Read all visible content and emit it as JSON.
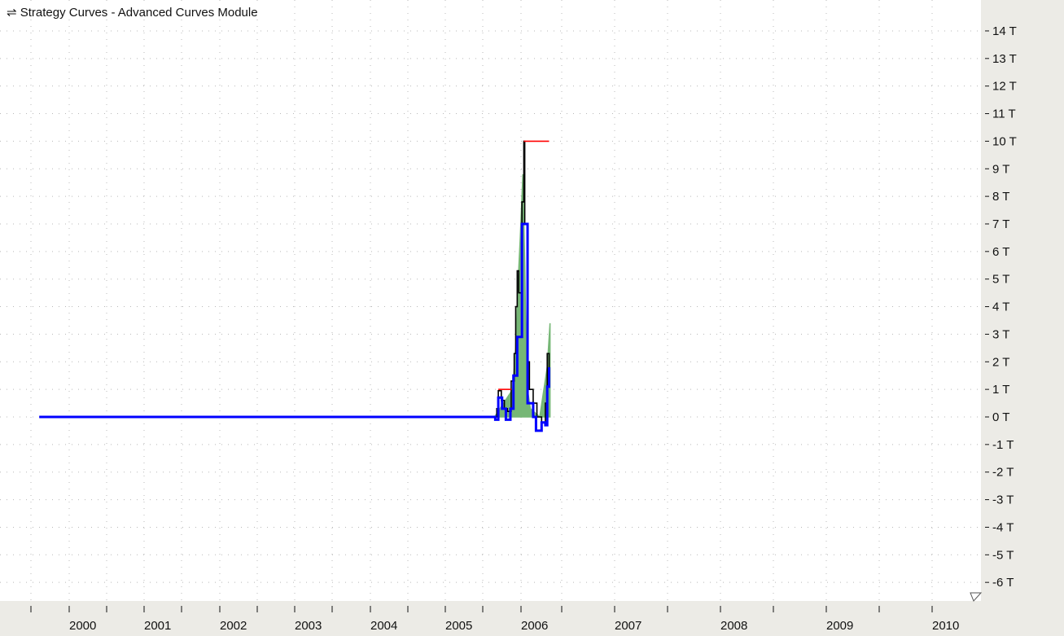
{
  "window": {
    "title": "Strategy Curves - Advanced Curves Module",
    "title_icon": "swap-arrows-icon"
  },
  "chart_data": {
    "type": "line",
    "title": "Strategy Curves - Advanced Curves Module",
    "xlabel": "",
    "ylabel": "",
    "x_tick_labels": [
      "2000",
      "2001",
      "2002",
      "2003",
      "2004",
      "2005",
      "2006",
      "2007",
      "2008",
      "2009",
      "2010"
    ],
    "y_tick_labels": [
      "14 T",
      "13 T",
      "12 T",
      "11 T",
      "10 T",
      "9 T",
      "8 T",
      "7 T",
      "6 T",
      "5 T",
      "4 T",
      "3 T",
      "2 T",
      "1 T",
      "0 T",
      "-1 T",
      "-2 T",
      "-3 T",
      "-4 T",
      "-5 T",
      "-6 T"
    ],
    "ylim": [
      -6.5,
      15
    ],
    "y_unit": "T",
    "grid": true,
    "legend": "none",
    "series": [
      {
        "color": "#6fb46f",
        "style": "area",
        "points": [
          [
            2005.65,
            0
          ],
          [
            2005.89,
            1.0
          ],
          [
            2005.93,
            2.5
          ],
          [
            2005.96,
            4.8
          ],
          [
            2005.99,
            6.5
          ],
          [
            2006.02,
            8.8
          ],
          [
            2006.04,
            5.5
          ],
          [
            2006.06,
            1.2
          ],
          [
            2006.1,
            0.3
          ],
          [
            2006.2,
            0
          ],
          [
            2006.28,
            1.8
          ],
          [
            2006.31,
            3.4
          ],
          [
            2006.31,
            0
          ]
        ]
      },
      {
        "color": "#000000",
        "style": "step",
        "points": [
          [
            2005.65,
            0
          ],
          [
            2005.68,
            0.3
          ],
          [
            2005.7,
            0.95
          ],
          [
            2005.74,
            0.6
          ],
          [
            2005.78,
            0.3
          ],
          [
            2005.82,
            0.2
          ],
          [
            2005.87,
            1.3
          ],
          [
            2005.91,
            2.3
          ],
          [
            2005.93,
            4.0
          ],
          [
            2005.95,
            5.3
          ],
          [
            2005.97,
            4.5
          ],
          [
            2006.01,
            7.8
          ],
          [
            2006.03,
            10.0
          ],
          [
            2006.04,
            7.0
          ],
          [
            2006.07,
            2.0
          ],
          [
            2006.09,
            1.0
          ],
          [
            2006.13,
            0.5
          ],
          [
            2006.17,
            0
          ],
          [
            2006.22,
            -0.2
          ],
          [
            2006.26,
            0.5
          ],
          [
            2006.28,
            2.3
          ],
          [
            2006.3,
            1.5
          ]
        ]
      },
      {
        "color": "#0000ff",
        "style": "step",
        "width": 3,
        "points": [
          [
            1999.6,
            0
          ],
          [
            2005.65,
            0
          ],
          [
            2005.66,
            -0.1
          ],
          [
            2005.7,
            0.7
          ],
          [
            2005.75,
            0.3
          ],
          [
            2005.8,
            -0.1
          ],
          [
            2005.86,
            0.3
          ],
          [
            2005.9,
            1.5
          ],
          [
            2005.95,
            2.9
          ],
          [
            2006.01,
            7.0
          ],
          [
            2006.07,
            0.5
          ],
          [
            2006.13,
            0
          ],
          [
            2006.16,
            -0.5
          ],
          [
            2006.22,
            -0.2
          ],
          [
            2006.26,
            -0.3
          ],
          [
            2006.28,
            1.1
          ],
          [
            2006.3,
            1.8
          ]
        ]
      },
      {
        "color": "#ff0000",
        "style": "step",
        "points": [
          [
            2005.7,
            1.0
          ],
          [
            2005.87,
            1.0
          ]
        ]
      },
      {
        "color": "#ff0000",
        "style": "step",
        "points": [
          [
            2006.03,
            10.0
          ],
          [
            2006.3,
            10.0
          ]
        ]
      }
    ]
  }
}
